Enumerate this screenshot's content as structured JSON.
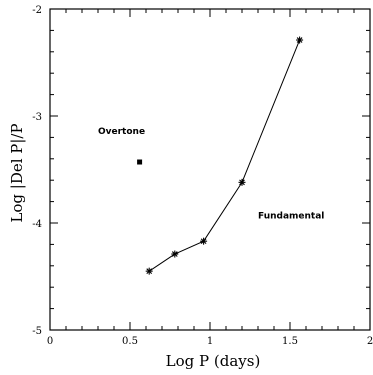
{
  "chart_data": {
    "type": "scatter",
    "xlabel": "Log P (days)",
    "ylabel": "Log |Del P|/P",
    "xlim": [
      0,
      2
    ],
    "ylim": [
      -5,
      -2
    ],
    "x_ticks": [
      "0",
      "0.5",
      "1",
      "1.5",
      "2"
    ],
    "x_tick_values": [
      0,
      0.5,
      1,
      1.5,
      2
    ],
    "y_ticks": [
      "-5",
      "-4",
      "-3",
      "-2"
    ],
    "y_tick_values": [
      -5,
      -4,
      -3,
      -2
    ],
    "grid": false,
    "series": [
      {
        "name": "Fundamental",
        "marker": "star",
        "connected": true,
        "x": [
          0.62,
          0.78,
          0.96,
          1.2,
          1.56
        ],
        "y": [
          -4.45,
          -4.29,
          -4.17,
          -3.62,
          -2.29
        ]
      },
      {
        "name": "Overtone",
        "marker": "square",
        "connected": false,
        "x": [
          0.56
        ],
        "y": [
          -3.43
        ]
      }
    ],
    "annotations": [
      {
        "text": "Overtone",
        "x": 0.3,
        "y": -3.17
      },
      {
        "text": "Fundamental",
        "x": 1.3,
        "y": -3.96
      }
    ]
  },
  "colors": {
    "ink": "#000000",
    "background": "#ffffff"
  }
}
